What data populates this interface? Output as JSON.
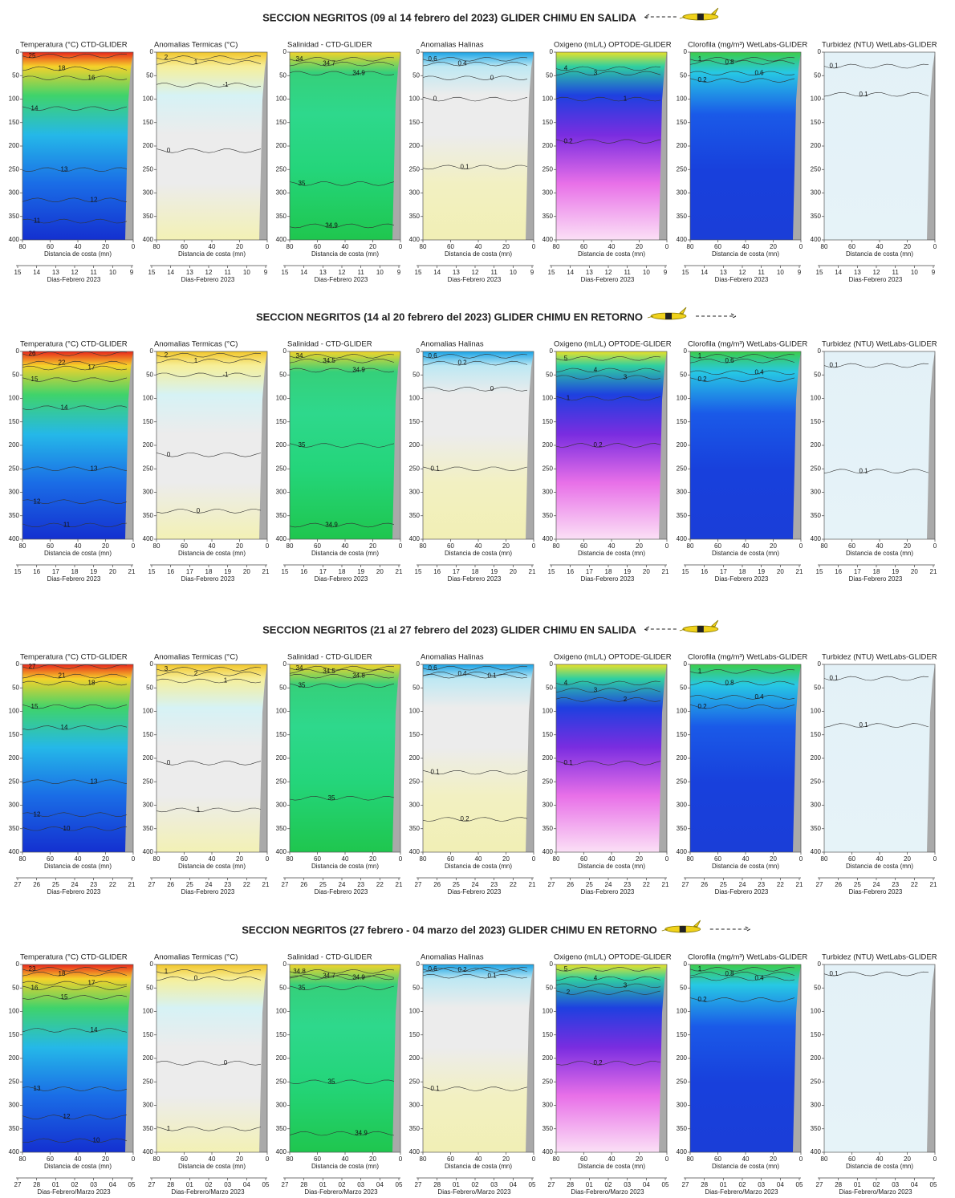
{
  "figure": {
    "panels": [
      {
        "title": "Temperatura (°C) CTD-GLIDER",
        "colors": [
          "#e8261c",
          "#f5d22a",
          "#3fd36b",
          "#25b8e8",
          "#1a6de6",
          "#1430d0"
        ]
      },
      {
        "title": "Anomalias Termicas (°C)",
        "colors": [
          "#f2c62a",
          "#f6ef9a",
          "#d6f2f5",
          "#ececec",
          "#ececec",
          "#f3f1b5"
        ]
      },
      {
        "title": "Salinidad - CTD-GLIDER",
        "colors": [
          "#f3d42a",
          "#35d07a",
          "#2ed88c",
          "#24d57a",
          "#1fc64e"
        ]
      },
      {
        "title": "Anomalias Halinas",
        "colors": [
          "#19a3e6",
          "#bde8f3",
          "#ececec",
          "#ececec",
          "#f2f0c2",
          "#f1efb5"
        ]
      },
      {
        "title": "Oxigeno (mL/L) OPTODE-GLIDER",
        "colors": [
          "#e8e12a",
          "#2fd0a0",
          "#1e40e0",
          "#7a2de0",
          "#e870e8",
          "#fbe0f6"
        ]
      },
      {
        "title": "Clorofila (mg/m³) WetLabs-GLIDER",
        "colors": [
          "#3ccd4a",
          "#27c8e4",
          "#1a5ae8",
          "#1840dc",
          "#1a3ed8"
        ]
      },
      {
        "title": "Turbidez (NTU) WetLabs-GLIDER",
        "colors": [
          "#e3f1f7",
          "#e6f3f8"
        ]
      }
    ],
    "depth_lim": [
      0,
      400
    ],
    "depth_ticks": [
      0,
      50,
      100,
      150,
      200,
      250,
      300,
      350,
      400
    ],
    "distance_lim": [
      80,
      0
    ],
    "distance_ticks": [
      80,
      60,
      40,
      20,
      0
    ],
    "distance_label": "Distancia de costa (mn)",
    "sections": [
      {
        "title": "SECCION NEGRITOS (09 al 14 febrero del 2023) GLIDER CHIMU EN SALIDA",
        "day_label": "Dias-Febrero 2023",
        "day_ticks": [
          "15",
          "14",
          "13",
          "12",
          "11",
          "10",
          "9"
        ],
        "contours": [
          [
            {
              "label": "25",
              "depth": 8
            },
            {
              "label": "18",
              "depth": 35
            },
            {
              "label": "16",
              "depth": 55
            },
            {
              "label": "14",
              "depth": 120
            },
            {
              "label": "13",
              "depth": 250
            },
            {
              "label": "12",
              "depth": 315
            },
            {
              "label": "11",
              "depth": 360
            }
          ],
          [
            {
              "label": "2",
              "depth": 12
            },
            {
              "label": "1",
              "depth": 22
            },
            {
              "label": "-1",
              "depth": 70
            },
            {
              "label": "0",
              "depth": 210
            }
          ],
          [
            {
              "label": "34",
              "depth": 15
            },
            {
              "label": "34.7",
              "depth": 25
            },
            {
              "label": "34.9",
              "depth": 45
            },
            {
              "label": "35",
              "depth": 280
            },
            {
              "label": "34.9",
              "depth": 370
            }
          ],
          [
            {
              "label": "0.6",
              "depth": 15
            },
            {
              "label": "0.4",
              "depth": 25
            },
            {
              "label": "0",
              "depth": 55
            },
            {
              "label": "0",
              "depth": 100
            },
            {
              "label": "0.1",
              "depth": 245
            }
          ],
          [
            {
              "label": "4",
              "depth": 35
            },
            {
              "label": "3",
              "depth": 45
            },
            {
              "label": "1",
              "depth": 100
            },
            {
              "label": "0.2",
              "depth": 190
            }
          ],
          [
            {
              "label": "1",
              "depth": 15
            },
            {
              "label": "0.8",
              "depth": 22
            },
            {
              "label": "0.6",
              "depth": 45
            },
            {
              "label": "0.2",
              "depth": 60
            }
          ],
          [
            {
              "label": "0.1",
              "depth": 30
            },
            {
              "label": "0.1",
              "depth": 90
            }
          ]
        ]
      },
      {
        "title": "SECCION NEGRITOS (14 al 20 febrero del 2023) GLIDER CHIMU EN RETORNO",
        "day_label": "Dias-Febrero 2023",
        "day_ticks": [
          "15",
          "16",
          "17",
          "18",
          "19",
          "20",
          "21"
        ],
        "contours": [
          [
            {
              "label": "26",
              "depth": 5
            },
            {
              "label": "22",
              "depth": 25
            },
            {
              "label": "17",
              "depth": 35
            },
            {
              "label": "15",
              "depth": 60
            },
            {
              "label": "14",
              "depth": 120
            },
            {
              "label": "13",
              "depth": 250
            },
            {
              "label": "12",
              "depth": 320
            },
            {
              "label": "11",
              "depth": 370
            }
          ],
          [
            {
              "label": "2",
              "depth": 8
            },
            {
              "label": "1",
              "depth": 20
            },
            {
              "label": "-1",
              "depth": 50
            },
            {
              "label": "0",
              "depth": 220
            },
            {
              "label": "0",
              "depth": 340
            }
          ],
          [
            {
              "label": "34",
              "depth": 10
            },
            {
              "label": "34.5",
              "depth": 20
            },
            {
              "label": "34.9",
              "depth": 40
            },
            {
              "label": "35",
              "depth": 200
            },
            {
              "label": "34.9",
              "depth": 370
            }
          ],
          [
            {
              "label": "0.6",
              "depth": 10
            },
            {
              "label": "0.2",
              "depth": 25
            },
            {
              "label": "0",
              "depth": 80
            },
            {
              "label": "0.1",
              "depth": 250
            }
          ],
          [
            {
              "label": "5",
              "depth": 15
            },
            {
              "label": "4",
              "depth": 40
            },
            {
              "label": "3",
              "depth": 55
            },
            {
              "label": "1",
              "depth": 100
            },
            {
              "label": "0.2",
              "depth": 200
            }
          ],
          [
            {
              "label": "1",
              "depth": 10
            },
            {
              "label": "0.6",
              "depth": 20
            },
            {
              "label": "0.4",
              "depth": 45
            },
            {
              "label": "0.2",
              "depth": 60
            }
          ],
          [
            {
              "label": "0.1",
              "depth": 30
            },
            {
              "label": "0.1",
              "depth": 255
            }
          ]
        ]
      },
      {
        "title": "SECCION NEGRITOS (21 al 27 febrero del 2023) GLIDER CHIMU EN SALIDA",
        "day_label": "Dias-Febrero 2023",
        "day_ticks": [
          "27",
          "26",
          "25",
          "24",
          "23",
          "22",
          "21"
        ],
        "contours": [
          [
            {
              "label": "27",
              "depth": 5
            },
            {
              "label": "21",
              "depth": 25
            },
            {
              "label": "18",
              "depth": 40
            },
            {
              "label": "15",
              "depth": 90
            },
            {
              "label": "14",
              "depth": 135
            },
            {
              "label": "13",
              "depth": 250
            },
            {
              "label": "12",
              "depth": 320
            },
            {
              "label": "10",
              "depth": 350
            }
          ],
          [
            {
              "label": "3",
              "depth": 10
            },
            {
              "label": "2",
              "depth": 20
            },
            {
              "label": "1",
              "depth": 35
            },
            {
              "label": "0",
              "depth": 210
            },
            {
              "label": "1",
              "depth": 310
            }
          ],
          [
            {
              "label": "34",
              "depth": 8
            },
            {
              "label": "34.5",
              "depth": 15
            },
            {
              "label": "34.8",
              "depth": 25
            },
            {
              "label": "35",
              "depth": 45
            },
            {
              "label": "35",
              "depth": 285
            }
          ],
          [
            {
              "label": "0.6",
              "depth": 8
            },
            {
              "label": "0.4",
              "depth": 20
            },
            {
              "label": "0.1",
              "depth": 25
            },
            {
              "label": "0.1",
              "depth": 230
            },
            {
              "label": "0.2",
              "depth": 330
            }
          ],
          [
            {
              "label": "4",
              "depth": 40
            },
            {
              "label": "3",
              "depth": 55
            },
            {
              "label": "2",
              "depth": 75
            },
            {
              "label": "0.1",
              "depth": 210
            }
          ],
          [
            {
              "label": "1",
              "depth": 15
            },
            {
              "label": "0.8",
              "depth": 40
            },
            {
              "label": "0.4",
              "depth": 70
            },
            {
              "label": "0.2",
              "depth": 90
            }
          ],
          [
            {
              "label": "0.1",
              "depth": 30
            },
            {
              "label": "0.1",
              "depth": 130
            }
          ]
        ]
      },
      {
        "title": "SECCION NEGRITOS (27 febrero - 04 marzo del 2023) GLIDER CHIMU EN RETORNO",
        "day_label": "Dias-Febrero/Marzo 2023",
        "day_ticks": [
          "27",
          "28",
          "01",
          "02",
          "03",
          "04",
          "05"
        ],
        "contours": [
          [
            {
              "label": "23",
              "depth": 10
            },
            {
              "label": "18",
              "depth": 20
            },
            {
              "label": "17",
              "depth": 40
            },
            {
              "label": "16",
              "depth": 50
            },
            {
              "label": "15",
              "depth": 70
            },
            {
              "label": "14",
              "depth": 140
            },
            {
              "label": "13",
              "depth": 265
            },
            {
              "label": "12",
              "depth": 325
            },
            {
              "label": "10",
              "depth": 375
            }
          ],
          [
            {
              "label": "1",
              "depth": 15
            },
            {
              "label": "0",
              "depth": 30
            },
            {
              "label": "0",
              "depth": 210
            },
            {
              "label": "1",
              "depth": 350
            }
          ],
          [
            {
              "label": "34.8",
              "depth": 15
            },
            {
              "label": "34.7",
              "depth": 25
            },
            {
              "label": "34.9",
              "depth": 28
            },
            {
              "label": "35",
              "depth": 50
            },
            {
              "label": "35",
              "depth": 250
            },
            {
              "label": "34.9",
              "depth": 360
            }
          ],
          [
            {
              "label": "0.6",
              "depth": 10
            },
            {
              "label": "0.2",
              "depth": 12
            },
            {
              "label": "0.1",
              "depth": 25
            },
            {
              "label": "0.1",
              "depth": 265
            }
          ],
          [
            {
              "label": "5",
              "depth": 10
            },
            {
              "label": "4",
              "depth": 30
            },
            {
              "label": "3",
              "depth": 45
            },
            {
              "label": "2",
              "depth": 60
            },
            {
              "label": "0.2",
              "depth": 210
            }
          ],
          [
            {
              "label": "1",
              "depth": 10
            },
            {
              "label": "0.8",
              "depth": 20
            },
            {
              "label": "0.4",
              "depth": 30
            },
            {
              "label": "0.2",
              "depth": 75
            }
          ],
          [
            {
              "label": "0.1",
              "depth": 20
            }
          ]
        ]
      }
    ]
  }
}
